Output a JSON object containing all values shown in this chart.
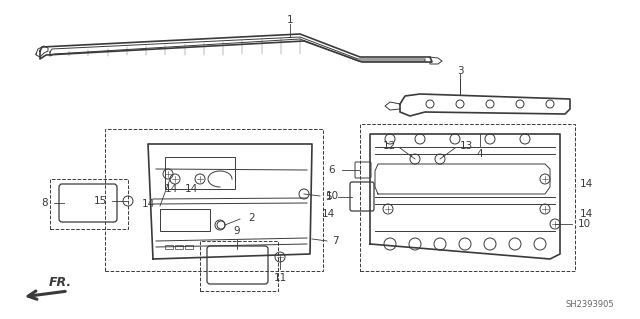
{
  "bg_color": "#ffffff",
  "line_color": "#3a3a3a",
  "label_color": "#000000",
  "fig_width": 6.4,
  "fig_height": 3.19,
  "dpi": 100
}
